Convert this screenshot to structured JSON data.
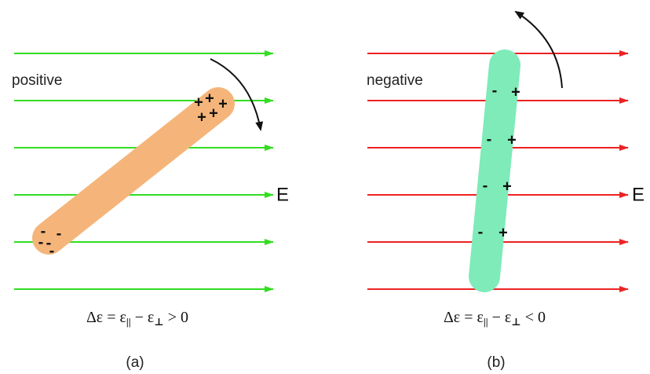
{
  "panels": [
    {
      "label": "positive",
      "field": "E",
      "formula": {
        "lhs": "Δε = ε",
        "sub1": "||",
        "mid": " − ε",
        "sub2": "⊥",
        "rhs": " > 0"
      },
      "caption": "(a)",
      "charges": [
        "+",
        "+",
        "+",
        "+",
        "+",
        "-",
        "-",
        "-",
        "-",
        "-"
      ]
    },
    {
      "label": "negative",
      "field": "E",
      "formula": {
        "lhs": "Δε = ε",
        "sub1": "||",
        "mid": " − ε",
        "sub2": "⊥",
        "rhs": " < 0"
      },
      "caption": "(b)",
      "charges": [
        "-",
        "+",
        "-",
        "+",
        "-",
        "+",
        "-",
        "+"
      ]
    }
  ]
}
